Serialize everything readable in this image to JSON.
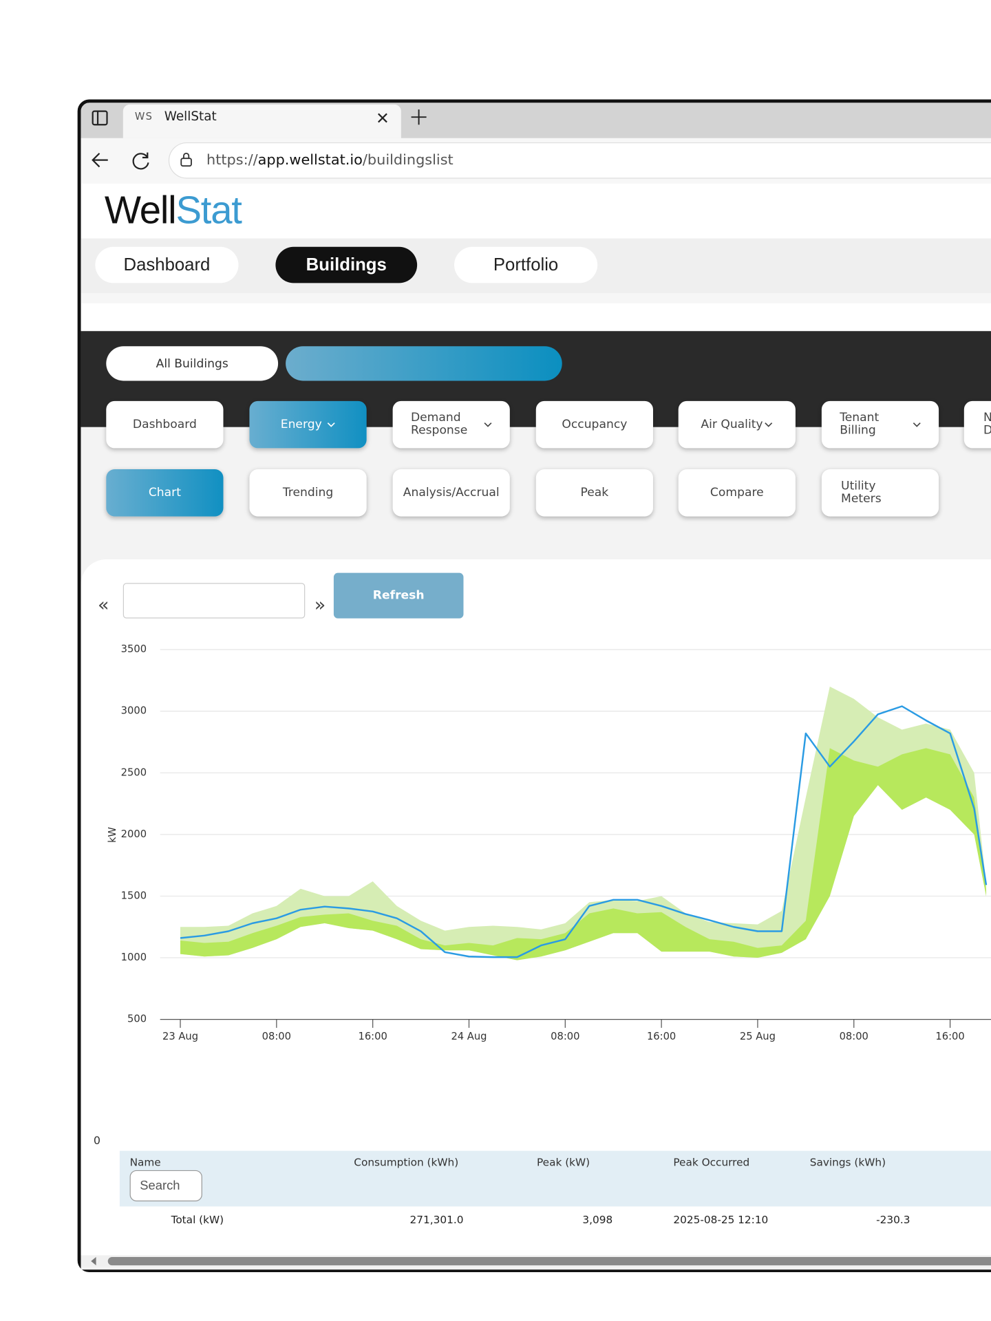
{
  "browser": {
    "tab_icon": "WS",
    "tab_title": "WellStat",
    "url_prefix": "https://",
    "url_host": "app.wellstat.io",
    "url_path": "/buildingslist"
  },
  "logo": {
    "part1": "Well",
    "part2": "Stat"
  },
  "main_nav": [
    "Dashboard",
    "Buildings",
    "Portfolio"
  ],
  "building_selector": "All Buildings",
  "modules": [
    "Dashboard",
    "Energy",
    "Demand Response",
    "Occupancy",
    "Air Quality",
    "Tenant Billing",
    "N D"
  ],
  "sub_tabs": [
    "Chart",
    "Trending",
    "Analysis/Accrual",
    "Peak",
    "Compare",
    "Utility Meters"
  ],
  "prev": "«",
  "next": "»",
  "refresh": "Refresh",
  "chart_data": {
    "type": "line",
    "y_label": "kW",
    "x": [
      0,
      2,
      4,
      6,
      8,
      10,
      12,
      14,
      16,
      18,
      20,
      22,
      24,
      26,
      28,
      30,
      32,
      34,
      36,
      38,
      40,
      42,
      44,
      46,
      48,
      50,
      52,
      54,
      56,
      58,
      60,
      62,
      64,
      66,
      67
    ],
    "xlim": [
      -1.68,
      67.4
    ],
    "xticks": [
      {
        "value": 0,
        "label": "23 Aug"
      },
      {
        "value": 8,
        "label": "08:00"
      },
      {
        "value": 16,
        "label": "16:00"
      },
      {
        "value": 24,
        "label": "24 Aug"
      },
      {
        "value": 32,
        "label": "08:00"
      },
      {
        "value": 40,
        "label": "16:00"
      },
      {
        "value": 48,
        "label": "25 Aug"
      },
      {
        "value": 56,
        "label": "08:00"
      },
      {
        "value": 64,
        "label": "16:00"
      }
    ],
    "ylim": [
      500,
      3500
    ],
    "yticks": [
      500,
      1000,
      1500,
      2000,
      2500,
      3000,
      3500
    ],
    "grid": true,
    "bands": [
      {
        "color": "#d6edb4",
        "low": [
          1030,
          1010,
          1020,
          1080,
          1150,
          1250,
          1280,
          1240,
          1220,
          1150,
          1070,
          1060,
          1060,
          1020,
          980,
          1010,
          1060,
          1130,
          1200,
          1200,
          1050,
          1050,
          1050,
          1010,
          1000,
          1040,
          1150,
          1500,
          2150,
          2400,
          2200,
          2300,
          2200,
          2000,
          1500
        ],
        "high": [
          1250,
          1250,
          1260,
          1360,
          1420,
          1560,
          1500,
          1500,
          1620,
          1420,
          1300,
          1220,
          1250,
          1260,
          1250,
          1230,
          1280,
          1450,
          1470,
          1460,
          1500,
          1360,
          1290,
          1280,
          1270,
          1380,
          2300,
          3200,
          3100,
          2950,
          2850,
          2900,
          2850,
          2500,
          1600
        ]
      },
      {
        "color": "#b7e85c",
        "low": [
          1030,
          1010,
          1020,
          1080,
          1150,
          1250,
          1280,
          1240,
          1220,
          1150,
          1070,
          1060,
          1060,
          1020,
          980,
          1010,
          1060,
          1130,
          1200,
          1200,
          1050,
          1050,
          1050,
          1010,
          1000,
          1040,
          1150,
          1500,
          2150,
          2400,
          2200,
          2300,
          2200,
          2000,
          1500
        ],
        "high": [
          1140,
          1120,
          1130,
          1200,
          1260,
          1330,
          1350,
          1360,
          1300,
          1260,
          1150,
          1100,
          1120,
          1100,
          1160,
          1150,
          1200,
          1360,
          1400,
          1360,
          1370,
          1250,
          1150,
          1130,
          1080,
          1100,
          1300,
          2700,
          2600,
          2550,
          2650,
          2700,
          2650,
          2300,
          1550
        ]
      }
    ],
    "series": [
      {
        "color": "#2a9be3",
        "values": [
          1160,
          1180,
          1215,
          1280,
          1320,
          1390,
          1415,
          1400,
          1375,
          1320,
          1215,
          1045,
          1010,
          1005,
          1005,
          1100,
          1150,
          1420,
          1470,
          1470,
          1420,
          1355,
          1305,
          1250,
          1215,
          1215,
          2820,
          2550,
          2755,
          2975,
          3040,
          2925,
          2820,
          2210,
          1590
        ]
      }
    ]
  },
  "count_label": "0",
  "table": {
    "headers": [
      "Name",
      "Consumption (kWh)",
      "Peak (kW)",
      "Peak Occurred",
      "Savings (kWh)"
    ],
    "search_placeholder": "Search",
    "rows": [
      [
        "Total (kW)",
        "271,301.0",
        "3,098",
        "2025-08-25 12:10",
        "-230.3"
      ]
    ]
  }
}
